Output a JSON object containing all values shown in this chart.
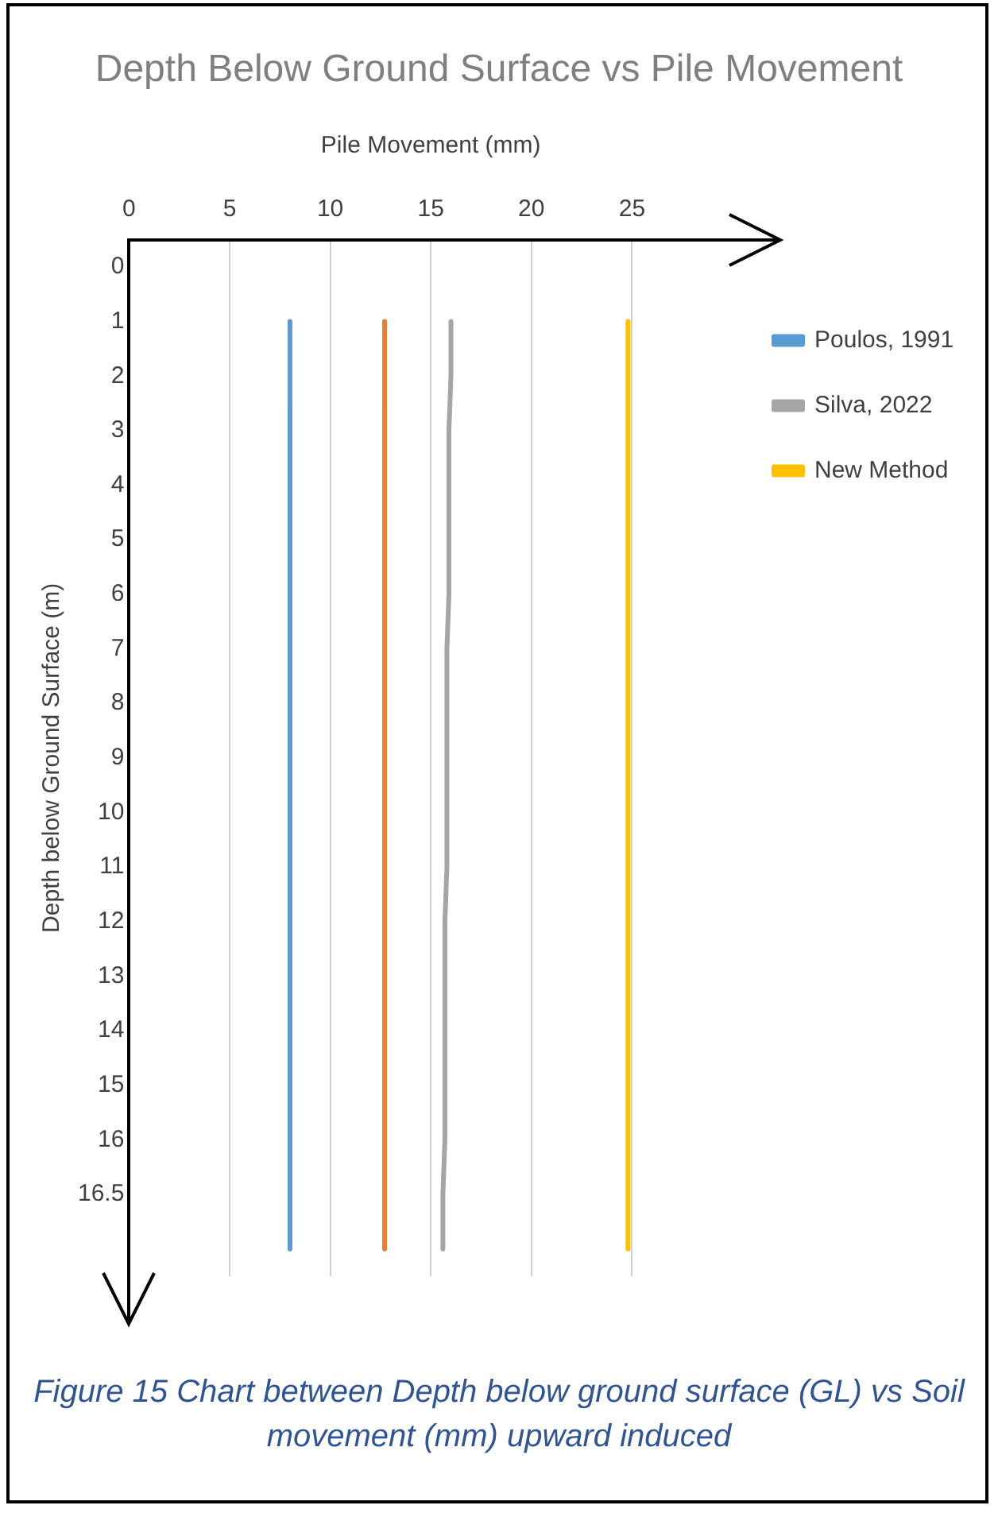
{
  "chart_data": {
    "type": "line",
    "orientation": "horizontal",
    "title": "Depth Below Ground Surface vs Pile Movement",
    "xlabel": "Pile Movement (mm)",
    "ylabel": "Depth below Ground Surface (m)",
    "categories": [
      "0",
      "1",
      "2",
      "3",
      "4",
      "5",
      "6",
      "7",
      "8",
      "9",
      "10",
      "11",
      "12",
      "13",
      "14",
      "15",
      "16",
      "16.5",
      null
    ],
    "xlim": [
      0,
      30
    ],
    "xticks": [
      0,
      5,
      10,
      15,
      20,
      25
    ],
    "grid": "x",
    "legend": "right",
    "marker": "none",
    "line_style": "solid",
    "series": [
      {
        "name": "Poulos, 1991",
        "color": "#5b9bd5",
        "values": [
          null,
          8,
          8,
          8,
          8,
          8,
          8,
          8,
          8,
          8,
          8,
          8,
          8,
          8,
          8,
          8,
          8,
          8,
          8
        ]
      },
      {
        "color": "#ed7d31",
        "values": [
          null,
          12.7,
          12.7,
          12.7,
          12.7,
          12.7,
          12.7,
          12.7,
          12.7,
          12.7,
          12.7,
          12.7,
          12.7,
          12.7,
          12.7,
          12.7,
          12.7,
          12.7,
          12.7
        ]
      },
      {
        "name": "Silva, 2022",
        "color": "#a5a5a5",
        "values": [
          null,
          16.0,
          16.0,
          15.9,
          15.9,
          15.9,
          15.9,
          15.8,
          15.8,
          15.8,
          15.8,
          15.8,
          15.7,
          15.7,
          15.7,
          15.7,
          15.7,
          15.6,
          15.6
        ]
      },
      {
        "name": "New Method",
        "color": "#ffc000",
        "values": [
          null,
          24.8,
          24.8,
          24.8,
          24.8,
          24.8,
          24.8,
          24.8,
          24.8,
          24.8,
          24.8,
          24.8,
          24.8,
          24.8,
          24.8,
          24.8,
          24.8,
          24.8,
          24.8
        ]
      }
    ],
    "annotations": [
      "Figure 15 Chart between Depth below ground surface (GL) vs Soil movement (mm) upward induced"
    ]
  }
}
